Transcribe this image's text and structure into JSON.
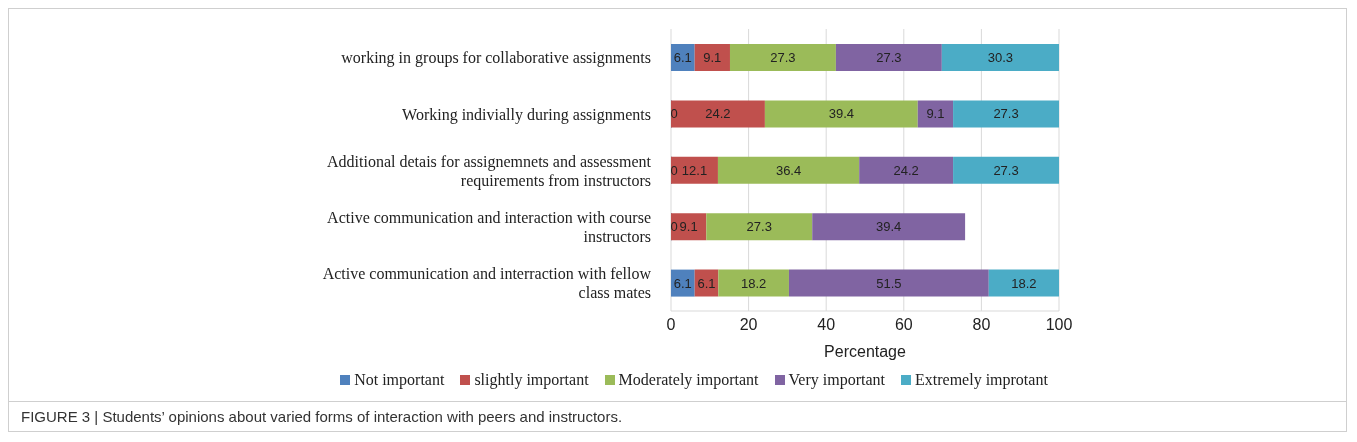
{
  "chart_data": {
    "type": "bar",
    "orientation": "horizontal",
    "stacked": true,
    "categories": [
      "working in groups for collaborative assignments",
      "Working indivially during assignments",
      "Additional detais for assignemnets and assessment requirements from instructors",
      "Active communication and interaction with course instructors",
      "Active communication and interraction with fellow class mates"
    ],
    "series": [
      {
        "name": "Not important",
        "color": "#4f81bd",
        "values": [
          6.1,
          0,
          0,
          0,
          6.1
        ]
      },
      {
        "name": "slightly important",
        "color": "#c0504d",
        "values": [
          9.1,
          24.2,
          12.1,
          9.1,
          6.1
        ]
      },
      {
        "name": "Moderately important",
        "color": "#9bbb59",
        "values": [
          27.3,
          39.4,
          36.4,
          27.3,
          18.2
        ]
      },
      {
        "name": "Very important",
        "color": "#8064a2",
        "values": [
          27.3,
          9.1,
          24.2,
          39.4,
          51.5
        ]
      },
      {
        "name": "Extremely improtant",
        "color": "#4bacc6",
        "values": [
          30.3,
          27.3,
          27.3,
          null,
          18.2
        ]
      }
    ],
    "xlim": [
      0,
      100
    ],
    "xticks": [
      0,
      20,
      40,
      60,
      80,
      100
    ],
    "xlabel": "Percentage",
    "grid": "x",
    "legend": "bottom",
    "data_labels": true,
    "annotations": [
      "FIGURE 3 | Students’ opinions about varied forms of interaction with peers and instructors."
    ]
  }
}
